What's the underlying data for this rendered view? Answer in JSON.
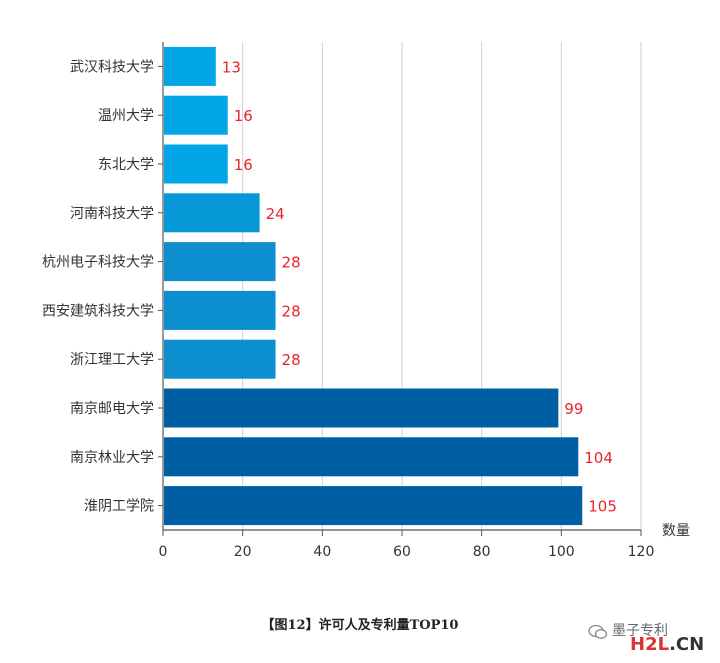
{
  "chart_data": {
    "type": "bar",
    "orientation": "horizontal",
    "categories": [
      "武汉科技大学",
      "温州大学",
      "东北大学",
      "河南科技大学",
      "杭州电子科技大学",
      "西安建筑科技大学",
      "浙江理工大学",
      "南京邮电大学",
      "南京林业大学",
      "淮阴工学院"
    ],
    "values": [
      13,
      16,
      16,
      24,
      28,
      28,
      28,
      99,
      104,
      105
    ],
    "bar_colors": [
      "#00a6e6",
      "#00a6e6",
      "#00a6e6",
      "#0798d8",
      "#0d8fcf",
      "#0d8fcf",
      "#0d8fcf",
      "#005fa3",
      "#005fa3",
      "#005fa3"
    ],
    "label_color": "#e8252a",
    "xlabel": "数量",
    "xlim": [
      0,
      120
    ],
    "xticks": [
      0,
      20,
      40,
      60,
      80,
      100,
      120
    ],
    "grid": true
  },
  "caption": "【图12】许可人及专利量TOP10",
  "watermark": {
    "text": "墨子专利",
    "logo_main": "H2L",
    "logo_suffix": ".CN"
  }
}
